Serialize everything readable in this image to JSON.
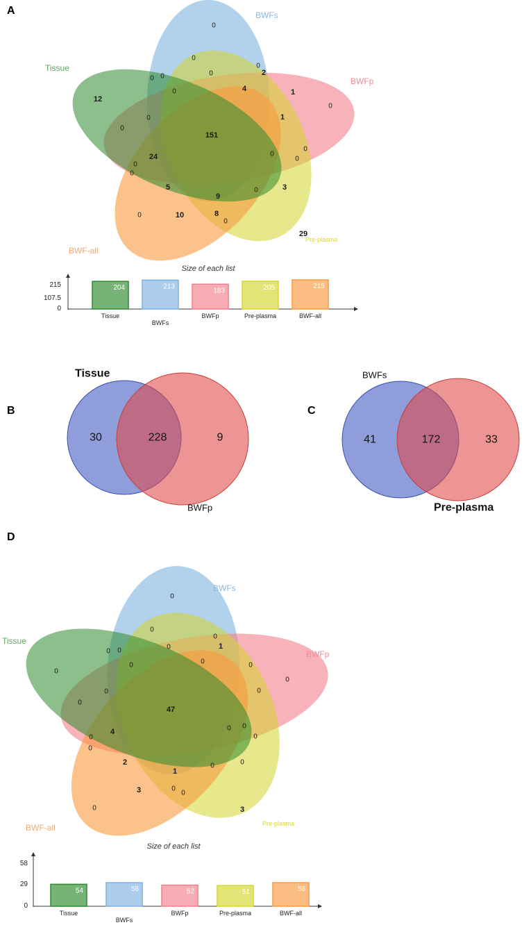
{
  "panels": {
    "A": "A",
    "B": "B",
    "C": "C",
    "D": "D"
  },
  "set_colors": {
    "Tissue": "#2e8b2e",
    "BWFs": "#7fb2e0",
    "BWFp": "#f47f8a",
    "Pre-plasma": "#d4d62e",
    "BWF-all": "#f99a3e"
  },
  "venn_A": {
    "labels": {
      "Tissue": "Tissue",
      "BWFs": "BWFs",
      "BWFp": "BWFp",
      "Pre-plasma": "Pre-plasma",
      "BWF-all": "BWF-all"
    },
    "regions": [
      {
        "v": "0"
      },
      {
        "v": "0"
      },
      {
        "v": "0"
      },
      {
        "v": "2"
      },
      {
        "v": "12"
      },
      {
        "v": "0"
      },
      {
        "v": "0"
      },
      {
        "v": "0"
      },
      {
        "v": "4"
      },
      {
        "v": "1"
      },
      {
        "v": "0"
      },
      {
        "v": "0"
      },
      {
        "v": "0"
      },
      {
        "v": "1"
      },
      {
        "v": "151"
      },
      {
        "v": "0"
      },
      {
        "v": "24"
      },
      {
        "v": "0"
      },
      {
        "v": "0"
      },
      {
        "v": "0"
      },
      {
        "v": "5"
      },
      {
        "v": "9"
      },
      {
        "v": "0"
      },
      {
        "v": "3"
      },
      {
        "v": "10"
      },
      {
        "v": "8"
      },
      {
        "v": "0"
      },
      {
        "v": "0"
      },
      {
        "v": "29"
      },
      {
        "v": "0"
      },
      {
        "v": "0"
      }
    ]
  },
  "venn_D": {
    "labels": {
      "Tissue": "Tissue",
      "BWFs": "BWFs",
      "BWFp": "BWFp",
      "Pre-plasma": "Pre-plasma",
      "BWF-all": "BWF-all"
    },
    "regions": [
      {
        "v": "0"
      },
      {
        "v": "0"
      },
      {
        "v": "0"
      },
      {
        "v": "1"
      },
      {
        "v": "0"
      },
      {
        "v": "0"
      },
      {
        "v": "0"
      },
      {
        "v": "0"
      },
      {
        "v": "0"
      },
      {
        "v": "0"
      },
      {
        "v": "0"
      },
      {
        "v": "0"
      },
      {
        "v": "0"
      },
      {
        "v": "0"
      },
      {
        "v": "0"
      },
      {
        "v": "47"
      },
      {
        "v": "0"
      },
      {
        "v": "4"
      },
      {
        "v": "0"
      },
      {
        "v": "0"
      },
      {
        "v": "0"
      },
      {
        "v": "0"
      },
      {
        "v": "0"
      },
      {
        "v": "0"
      },
      {
        "v": "2"
      },
      {
        "v": "1"
      },
      {
        "v": "0"
      },
      {
        "v": "3"
      },
      {
        "v": "0"
      },
      {
        "v": "0"
      },
      {
        "v": "3"
      }
    ]
  },
  "venn_B": {
    "left_label": "Tissue",
    "right_label": "BWFp",
    "left": "30",
    "both": "228",
    "right": "9"
  },
  "venn_C": {
    "left_label": "BWFs",
    "right_label": "Pre-plasma",
    "left": "41",
    "both": "172",
    "right": "33"
  },
  "chart_data": [
    {
      "type": "bar",
      "title": "Size of each list",
      "categories": [
        "Tissue",
        "BWFs",
        "BWFp",
        "Pre-plasma",
        "BWF-all"
      ],
      "values": [
        204,
        213,
        183,
        205,
        215
      ],
      "ylim": [
        0,
        215
      ],
      "yticks": [
        "215",
        "107.5",
        "0"
      ],
      "colors": [
        "#2e8b2e",
        "#7fb2e0",
        "#f47f8a",
        "#d4d62e",
        "#f99a3e"
      ]
    },
    {
      "type": "bar",
      "title": "Size of each list",
      "categories": [
        "Tissue",
        "BWFs",
        "BWFp",
        "Pre-plasma",
        "BWF-all"
      ],
      "values": [
        54,
        58,
        52,
        51,
        58
      ],
      "ylim": [
        0,
        58
      ],
      "yticks": [
        "58",
        "29",
        "0"
      ],
      "colors": [
        "#2e8b2e",
        "#7fb2e0",
        "#f47f8a",
        "#d4d62e",
        "#f99a3e"
      ]
    }
  ]
}
